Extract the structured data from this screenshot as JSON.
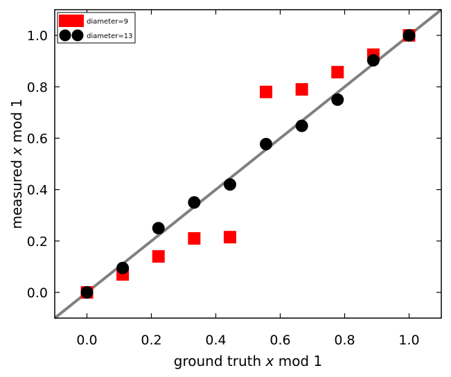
{
  "chart_data": {
    "type": "scatter",
    "xlabel_parts": [
      "ground truth ",
      "x",
      " mod 1"
    ],
    "ylabel_parts": [
      "measured ",
      "x",
      " mod 1"
    ],
    "xlim": [
      -0.1,
      1.1
    ],
    "ylim": [
      -0.1,
      1.1
    ],
    "xticks": [
      "0.0",
      "0.2",
      "0.4",
      "0.6",
      "0.8",
      "1.0"
    ],
    "yticks": [
      "0.0",
      "0.2",
      "0.4",
      "0.6",
      "0.8",
      "1.0"
    ],
    "grid": false,
    "legend_position": "top-left",
    "reference_line": {
      "points": [
        [
          -0.1,
          -0.1
        ],
        [
          1.1,
          1.1
        ]
      ],
      "color": "#808080"
    },
    "series": [
      {
        "name": "diameter=9",
        "marker": "square",
        "color": "#ff0000",
        "x": [
          0.0,
          0.111,
          0.222,
          0.333,
          0.444,
          0.556,
          0.667,
          0.778,
          0.889,
          1.0
        ],
        "y": [
          0.0,
          0.07,
          0.14,
          0.21,
          0.215,
          0.78,
          0.79,
          0.857,
          0.925,
          1.0
        ]
      },
      {
        "name": "diameter=13",
        "marker": "circle",
        "color": "#000000",
        "x": [
          0.0,
          0.111,
          0.222,
          0.333,
          0.444,
          0.556,
          0.667,
          0.778,
          0.889,
          1.0
        ],
        "y": [
          0.0,
          0.095,
          0.25,
          0.35,
          0.42,
          0.577,
          0.648,
          0.75,
          0.903,
          1.0
        ]
      }
    ]
  }
}
